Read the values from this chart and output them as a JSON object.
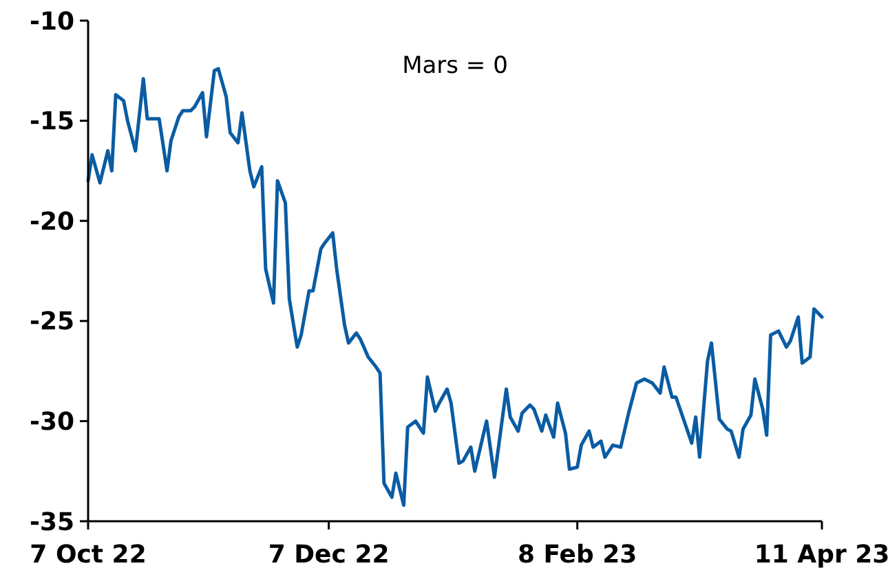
{
  "chart_data": {
    "type": "line",
    "annotations": [
      "Mars = 0"
    ],
    "x": [
      "2022-10-07",
      "2022-10-08",
      "2022-10-10",
      "2022-10-12",
      "2022-10-13",
      "2022-10-14",
      "2022-10-16",
      "2022-10-17",
      "2022-10-19",
      "2022-10-21",
      "2022-10-22",
      "2022-10-25",
      "2022-10-27",
      "2022-10-28",
      "2022-10-30",
      "2022-10-31",
      "2022-11-02",
      "2022-11-03",
      "2022-11-05",
      "2022-11-06",
      "2022-11-08",
      "2022-11-09",
      "2022-11-11",
      "2022-11-12",
      "2022-11-14",
      "2022-11-15",
      "2022-11-17",
      "2022-11-18",
      "2022-11-20",
      "2022-11-21",
      "2022-11-23",
      "2022-11-24",
      "2022-11-26",
      "2022-11-27",
      "2022-11-29",
      "2022-11-30",
      "2022-12-02",
      "2022-12-03",
      "2022-12-05",
      "2022-12-06",
      "2022-12-08",
      "2022-12-09",
      "2022-12-11",
      "2022-12-12",
      "2022-12-14",
      "2022-12-15",
      "2022-12-17",
      "2022-12-19",
      "2022-12-20",
      "2022-12-21",
      "2022-12-23",
      "2022-12-24",
      "2022-12-26",
      "2022-12-27",
      "2022-12-29",
      "2022-12-31",
      "2023-01-01",
      "2023-01-03",
      "2023-01-04",
      "2023-01-06",
      "2023-01-07",
      "2023-01-09",
      "2023-01-10",
      "2023-01-12",
      "2023-01-13",
      "2023-01-16",
      "2023-01-18",
      "2023-01-21",
      "2023-01-22",
      "2023-01-24",
      "2023-01-25",
      "2023-01-27",
      "2023-01-28",
      "2023-01-30",
      "2023-01-31",
      "2023-02-02",
      "2023-02-03",
      "2023-02-05",
      "2023-02-06",
      "2023-02-08",
      "2023-02-09",
      "2023-02-11",
      "2023-02-12",
      "2023-02-14",
      "2023-02-15",
      "2023-02-17",
      "2023-02-19",
      "2023-02-21",
      "2023-02-23",
      "2023-02-25",
      "2023-02-27",
      "2023-03-01",
      "2023-03-02",
      "2023-03-04",
      "2023-03-05",
      "2023-03-09",
      "2023-03-10",
      "2023-03-11",
      "2023-03-13",
      "2023-03-14",
      "2023-03-16",
      "2023-03-18",
      "2023-03-19",
      "2023-03-21",
      "2023-03-22",
      "2023-03-24",
      "2023-03-25",
      "2023-03-27",
      "2023-03-28",
      "2023-03-29",
      "2023-03-31",
      "2023-04-02",
      "2023-04-03",
      "2023-04-05",
      "2023-04-06",
      "2023-04-08",
      "2023-04-09",
      "2023-04-11"
    ],
    "series": [
      {
        "color": "#0a5ca3",
        "values": [
          -18.0,
          -16.7,
          -18.1,
          -16.5,
          -17.5,
          -13.7,
          -14.0,
          -15.0,
          -16.5,
          -12.9,
          -14.9,
          -14.9,
          -17.5,
          -16.0,
          -14.8,
          -14.5,
          -14.5,
          -14.3,
          -13.6,
          -15.8,
          -12.5,
          -12.4,
          -13.8,
          -15.6,
          -16.1,
          -14.6,
          -17.5,
          -18.3,
          -17.3,
          -22.4,
          -24.1,
          -18.0,
          -19.1,
          -23.9,
          -26.3,
          -25.7,
          -23.5,
          -23.5,
          -21.4,
          -21.1,
          -20.6,
          -22.4,
          -25.2,
          -26.1,
          -25.6,
          -25.9,
          -26.8,
          -27.3,
          -27.6,
          -33.1,
          -33.8,
          -32.6,
          -34.2,
          -30.3,
          -30.0,
          -30.6,
          -27.8,
          -29.5,
          -29.1,
          -28.4,
          -29.1,
          -32.1,
          -32.0,
          -31.3,
          -32.5,
          -30.0,
          -32.8,
          -28.4,
          -29.8,
          -30.5,
          -29.6,
          -29.2,
          -29.4,
          -30.5,
          -29.7,
          -30.8,
          -29.1,
          -30.6,
          -32.4,
          -32.3,
          -31.2,
          -30.5,
          -31.3,
          -31.0,
          -31.8,
          -31.2,
          -31.3,
          -29.6,
          -28.1,
          -27.9,
          -28.1,
          -28.6,
          -27.3,
          -28.8,
          -28.8,
          -31.1,
          -29.8,
          -31.8,
          -27.0,
          -26.1,
          -29.9,
          -30.4,
          -30.5,
          -31.8,
          -30.4,
          -29.7,
          -27.9,
          -29.4,
          -30.7,
          -25.7,
          -25.5,
          -26.3,
          -26.0,
          -24.8,
          -27.1,
          -26.8,
          -24.4,
          -24.8
        ]
      }
    ],
    "xlim": [
      "2022-10-07",
      "2023-04-11"
    ],
    "xticks": [
      {
        "value": "2022-10-07",
        "label": "7 Oct 22"
      },
      {
        "value": "2022-12-07",
        "label": "7 Dec 22"
      },
      {
        "value": "2023-02-08",
        "label": "8 Feb 23"
      },
      {
        "value": "2023-04-11",
        "label": "11 Apr 23"
      }
    ],
    "ylim": [
      -35,
      -10
    ],
    "yticks": [
      -35,
      -30,
      -25,
      -20,
      -15,
      -10
    ]
  }
}
